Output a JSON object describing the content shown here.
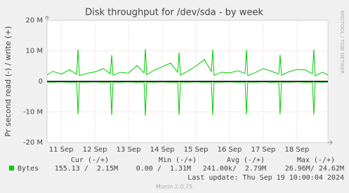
{
  "chart_data": {
    "type": "line",
    "title": "Disk throughput for /dev/sda - by week",
    "ylabel": "Pr second read (-) / write (+)",
    "side_text": "RRDTOOL / TOBI OETIKER",
    "x": [
      11.08,
      11.25,
      11.5,
      11.75,
      11.96,
      12.0,
      12.04,
      12.25,
      12.5,
      12.75,
      12.96,
      13.0,
      13.04,
      13.25,
      13.5,
      13.75,
      13.96,
      14.0,
      14.04,
      14.25,
      14.5,
      14.75,
      14.96,
      15.0,
      15.04,
      15.25,
      15.5,
      15.75,
      15.96,
      16.0,
      16.04,
      16.25,
      16.5,
      16.75,
      16.96,
      17.0,
      17.04,
      17.25,
      17.5,
      17.75,
      17.96,
      18.0,
      18.04,
      18.25,
      18.5,
      18.75,
      18.96,
      19.0,
      19.04,
      19.25,
      19.42
    ],
    "series": [
      {
        "name": "Bytes",
        "color": "#00cc00",
        "values": [
          2100000,
          3300000,
          2400000,
          3800000,
          2300000,
          10500000,
          1900000,
          2600000,
          3100000,
          4200000,
          2500000,
          8600000,
          2000000,
          3000000,
          2700000,
          5200000,
          2800000,
          10600000,
          2200000,
          3600000,
          4800000,
          6000000,
          3000000,
          9500000,
          2100000,
          3300000,
          5000000,
          7200000,
          3200000,
          10400000,
          2000000,
          3000000,
          2800000,
          3500000,
          2600000,
          10300000,
          1900000,
          2800000,
          4200000,
          3300000,
          2400000,
          8700000,
          2000000,
          3100000,
          3900000,
          3800000,
          2500000,
          10400000,
          1800000,
          3000000,
          2100000
        ],
        "negative_values": [
          -200000,
          -250000,
          -150000,
          -300000,
          -200000,
          -10800000,
          -200000,
          -250000,
          -150000,
          -300000,
          -200000,
          -11000000,
          -200000,
          -250000,
          -150000,
          -300000,
          -200000,
          -11200000,
          -200000,
          -250000,
          -150000,
          -300000,
          -200000,
          -11000000,
          -200000,
          -250000,
          -150000,
          -300000,
          -200000,
          -11100000,
          -200000,
          -250000,
          -150000,
          -300000,
          -200000,
          -10900000,
          -200000,
          -250000,
          -150000,
          -300000,
          -200000,
          -10800000,
          -200000,
          -250000,
          -150000,
          -300000,
          -200000,
          -10900000,
          -200000,
          -250000,
          -200000
        ]
      }
    ],
    "xlim": [
      11.08,
      19.42
    ],
    "xticks": [
      {
        "value": 11.5,
        "label": "11 Sep"
      },
      {
        "value": 12.5,
        "label": "12 Sep"
      },
      {
        "value": 13.5,
        "label": "13 Sep"
      },
      {
        "value": 14.5,
        "label": "14 Sep"
      },
      {
        "value": 15.5,
        "label": "15 Sep"
      },
      {
        "value": 16.5,
        "label": "16 Sep"
      },
      {
        "value": 17.5,
        "label": "17 Sep"
      },
      {
        "value": 18.5,
        "label": "18 Sep"
      }
    ],
    "ylim": [
      -20000000,
      20000000
    ],
    "yticks": [
      {
        "value": -20000000,
        "label": "-20 M"
      },
      {
        "value": -10000000,
        "label": "-10 M"
      },
      0,
      {
        "value": 10000000,
        "label": "10 M"
      },
      {
        "value": 20000000,
        "label": "20 M"
      }
    ],
    "grid": true,
    "legend_table": {
      "headers": [
        "Cur (-/+)",
        "Min (-/+)",
        "Avg (-/+)",
        "Max (-/+)"
      ],
      "rows": [
        [
          "155.13 /  2.15M",
          "0.00 /  1.31M",
          "241.00k/  2.79M",
          "26.96M/ 24.62M"
        ]
      ]
    },
    "last_update": "Last update: Thu Sep 19 10:00:04 2024",
    "footer": "Munin 2.0.75"
  }
}
